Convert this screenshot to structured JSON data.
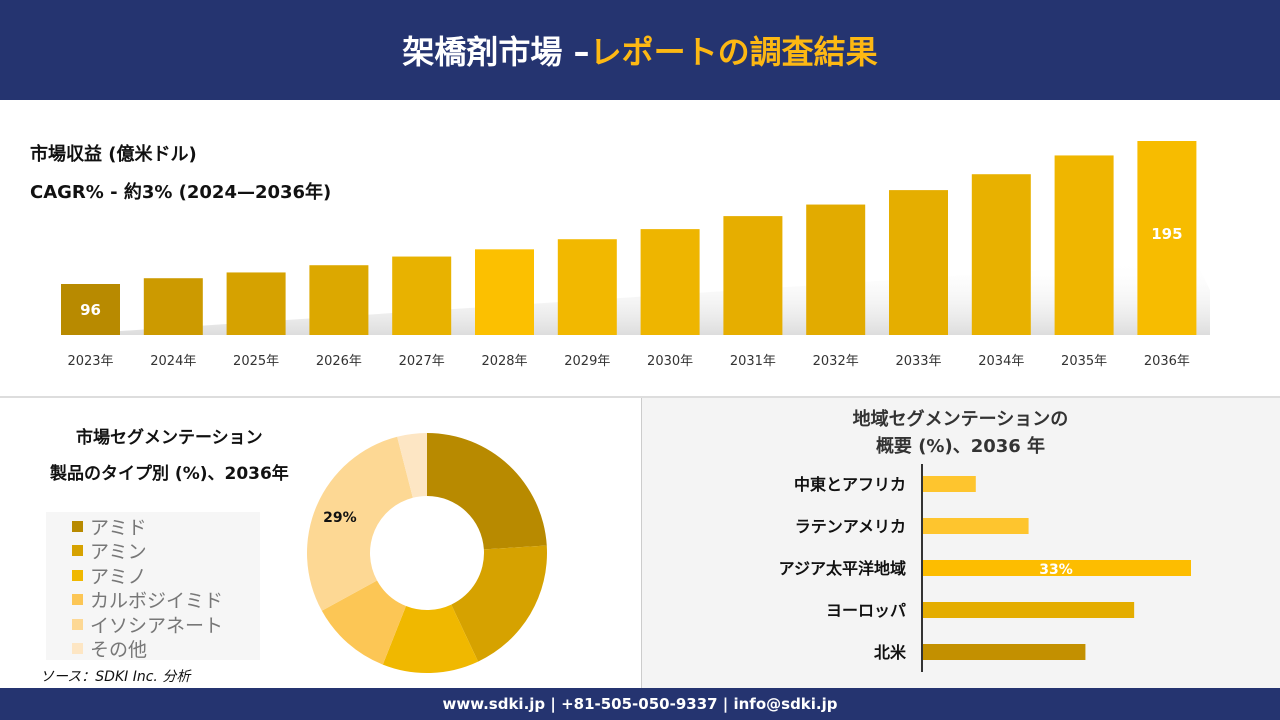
{
  "header": {
    "title_main": "架橋剤市場 –",
    "title_accent": "レポートの調査結果"
  },
  "revenue": {
    "title": "市場収益 (億米ドル)",
    "cagr": "CAGR% - 約3% (2024—2036年)"
  },
  "chart_data": [
    {
      "type": "bar",
      "title": "市場収益 (億米ドル)",
      "categories": [
        "2023年",
        "2024年",
        "2025年",
        "2026年",
        "2027年",
        "2028年",
        "2029年",
        "2030年",
        "2031年",
        "2032年",
        "2033年",
        "2034年",
        "2035年",
        "2036年"
      ],
      "values": [
        96,
        100,
        104,
        109,
        115,
        120,
        127,
        134,
        143,
        151,
        161,
        172,
        185,
        195
      ],
      "data_labels": {
        "2023年": "96",
        "2036年": "195"
      },
      "colors": [
        "#b88a00",
        "#cc9a00",
        "#d6a200",
        "#dca800",
        "#e8b200",
        "#fcc000",
        "#f2b800",
        "#eeb500",
        "#e6ae00",
        "#e2ab00",
        "#e5ae00",
        "#e8b100",
        "#efb600",
        "#f7bc00"
      ]
    },
    {
      "type": "pie",
      "title": "市場セグメンテーション 製品のタイプ別 (%)、2036年",
      "categories": [
        "アミド",
        "アミン",
        "アミノ",
        "カルボジイミド",
        "イソシアネート",
        "その他"
      ],
      "values": [
        24,
        19,
        13,
        11,
        29,
        4
      ],
      "colors": [
        "#b88a00",
        "#d6a200",
        "#f0b800",
        "#fcc655",
        "#fdd894",
        "#fde6c4"
      ],
      "data_labels": {
        "イソシアネート": "29%"
      }
    },
    {
      "type": "bar",
      "orientation": "horizontal",
      "title": "地域セグメンテーションの 概要 (%)、2036 年",
      "categories": [
        "中東とアフリカ",
        "ラテンアメリカ",
        "アジア太平洋地域",
        "ヨーロッパ",
        "北米"
      ],
      "values": [
        6.5,
        13,
        33,
        26,
        20
      ],
      "data_labels": {
        "アジア太平洋地域": "33%"
      },
      "colors": [
        "#fec52e",
        "#fec52e",
        "#fdbd00",
        "#e4ad00",
        "#c39000"
      ]
    }
  ],
  "segment": {
    "title1": "市場セグメンテーション",
    "title2": "製品のタイプ別 (%)、2036年",
    "source": "ソース：SDKI Inc. 分析"
  },
  "region": {
    "title1": "地域セグメンテーションの",
    "title2": "概要 (%)、2036 年"
  },
  "footer": {
    "contact": "www.sdki.jp | +81-505-050-9337 | info@sdki.jp"
  }
}
